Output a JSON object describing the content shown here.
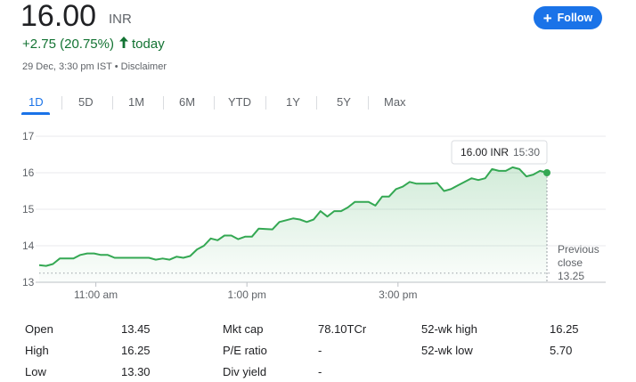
{
  "quote": {
    "price": "16.00",
    "currency": "INR",
    "change": "+2.75 (20.75%)",
    "change_suffix": "today",
    "meta": "29 Dec, 3:30 pm IST • Disclaimer"
  },
  "follow": {
    "label": "Follow",
    "icon": "plus-icon"
  },
  "tabs": [
    "1D",
    "5D",
    "1M",
    "6M",
    "YTD",
    "1Y",
    "5Y",
    "Max"
  ],
  "active_tab": "1D",
  "colors": {
    "line": "#34a853",
    "positive": "#137333",
    "accent": "#1a73e8"
  },
  "chart_data": {
    "type": "area",
    "y_ticks": [
      "17",
      "16",
      "15",
      "14",
      "13"
    ],
    "ylim": [
      13,
      17
    ],
    "x_ticks": [
      "11:00 am",
      "1:00 pm",
      "3:00 pm"
    ],
    "x_tick_positions": [
      1.5,
      5.5,
      9.5
    ],
    "xlim": [
      0,
      15
    ],
    "grid": true,
    "tooltip": {
      "price": "16.00 INR",
      "time": "15:30"
    },
    "previous_close": {
      "label": "Previous close",
      "value": "13.25",
      "level": 13.25
    },
    "series": [
      {
        "values": [
          [
            0.0,
            13.47
          ],
          [
            0.2,
            13.45
          ],
          [
            0.4,
            13.5
          ],
          [
            0.6,
            13.65
          ],
          [
            1.0,
            13.65
          ],
          [
            1.2,
            13.75
          ],
          [
            1.4,
            13.79
          ],
          [
            1.6,
            13.79
          ],
          [
            1.8,
            13.75
          ],
          [
            2.0,
            13.75
          ],
          [
            2.2,
            13.67
          ],
          [
            2.4,
            13.67
          ],
          [
            3.2,
            13.67
          ],
          [
            3.4,
            13.62
          ],
          [
            3.6,
            13.65
          ],
          [
            3.8,
            13.62
          ],
          [
            4.0,
            13.7
          ],
          [
            4.2,
            13.67
          ],
          [
            4.4,
            13.72
          ],
          [
            4.6,
            13.9
          ],
          [
            4.8,
            14.0
          ],
          [
            5.0,
            14.2
          ],
          [
            5.2,
            14.15
          ],
          [
            5.4,
            14.28
          ],
          [
            5.6,
            14.28
          ],
          [
            5.8,
            14.18
          ],
          [
            6.0,
            14.25
          ],
          [
            6.2,
            14.25
          ],
          [
            6.4,
            14.47
          ],
          [
            6.8,
            14.45
          ],
          [
            7.0,
            14.65
          ],
          [
            7.2,
            14.7
          ],
          [
            7.4,
            14.75
          ],
          [
            7.6,
            14.72
          ],
          [
            7.8,
            14.65
          ],
          [
            8.0,
            14.72
          ],
          [
            8.2,
            14.95
          ],
          [
            8.4,
            14.8
          ],
          [
            8.6,
            14.95
          ],
          [
            8.8,
            14.95
          ],
          [
            9.0,
            15.05
          ],
          [
            9.2,
            15.2
          ],
          [
            9.4,
            15.2
          ],
          [
            9.6,
            15.2
          ],
          [
            9.8,
            15.1
          ],
          [
            10.0,
            15.35
          ],
          [
            10.2,
            15.35
          ],
          [
            10.4,
            15.55
          ],
          [
            10.6,
            15.62
          ],
          [
            10.8,
            15.75
          ],
          [
            11.0,
            15.7
          ],
          [
            11.4,
            15.7
          ],
          [
            11.6,
            15.72
          ],
          [
            11.8,
            15.5
          ],
          [
            12.0,
            15.55
          ],
          [
            12.2,
            15.65
          ],
          [
            12.4,
            15.75
          ],
          [
            12.6,
            15.85
          ],
          [
            12.8,
            15.8
          ],
          [
            13.0,
            15.85
          ],
          [
            13.2,
            16.1
          ],
          [
            13.4,
            16.05
          ],
          [
            13.6,
            16.05
          ],
          [
            13.8,
            16.15
          ],
          [
            14.0,
            16.1
          ],
          [
            14.2,
            15.9
          ],
          [
            14.4,
            15.95
          ],
          [
            14.6,
            16.05
          ],
          [
            14.8,
            16.0
          ]
        ]
      }
    ]
  },
  "stats": {
    "col1": [
      {
        "label": "Open",
        "value": "13.45"
      },
      {
        "label": "High",
        "value": "16.25"
      },
      {
        "label": "Low",
        "value": "13.30"
      }
    ],
    "col2": [
      {
        "label": "Mkt cap",
        "value": "78.10TCr"
      },
      {
        "label": "P/E ratio",
        "value": "-"
      },
      {
        "label": "Div yield",
        "value": "-"
      }
    ],
    "col3": [
      {
        "label": "52-wk high",
        "value": "16.25"
      },
      {
        "label": "52-wk low",
        "value": "5.70"
      }
    ]
  }
}
